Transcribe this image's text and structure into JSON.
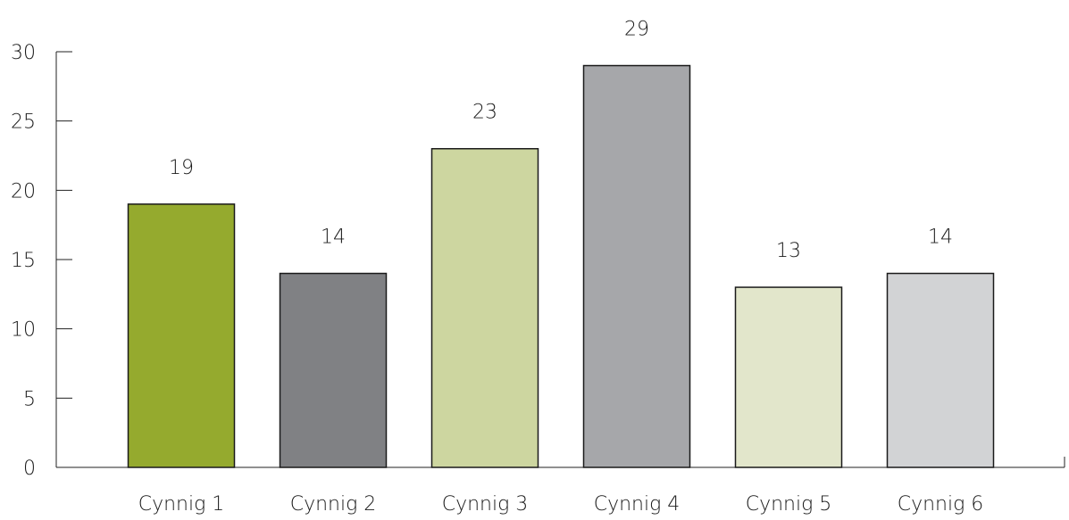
{
  "chart_data": {
    "type": "bar",
    "categories": [
      "Cynnig 1",
      "Cynnig 2",
      "Cynnig 3",
      "Cynnig 4",
      "Cynnig 5",
      "Cynnig 6"
    ],
    "values": [
      19,
      14,
      23,
      29,
      13,
      14
    ],
    "data_labels": [
      "19",
      "14",
      "23",
      "29",
      "13",
      "14"
    ],
    "colors": [
      "#95aa2e",
      "#808184",
      "#cdd6a0",
      "#a6a7aa",
      "#e2e6cb",
      "#d2d3d5"
    ],
    "ylim": [
      0,
      30
    ],
    "yticks": [
      "0",
      "5",
      "10",
      "15",
      "20",
      "25",
      "30"
    ],
    "grid": false,
    "title": "",
    "xlabel": "",
    "ylabel": ""
  }
}
